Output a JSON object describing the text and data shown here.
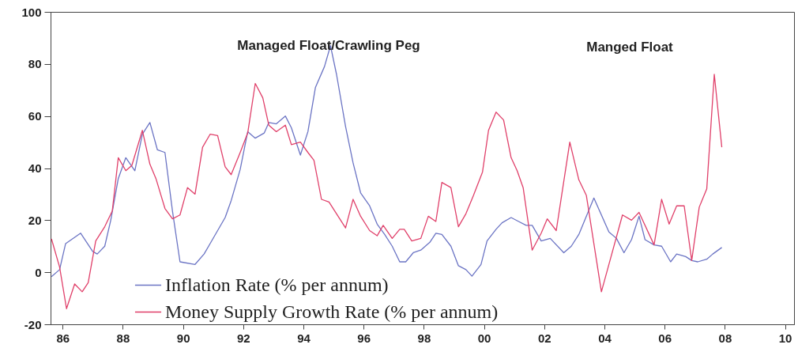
{
  "chart_data": {
    "type": "line",
    "xlim": [
      1985.6,
      2010.3
    ],
    "ylim": [
      -20,
      100
    ],
    "xticks": [
      {
        "value": 1986,
        "label": "86"
      },
      {
        "value": 1988,
        "label": "88"
      },
      {
        "value": 1990,
        "label": "90"
      },
      {
        "value": 1992,
        "label": "92"
      },
      {
        "value": 1994,
        "label": "94"
      },
      {
        "value": 1996,
        "label": "96"
      },
      {
        "value": 1998,
        "label": "98"
      },
      {
        "value": 2000,
        "label": "00"
      },
      {
        "value": 2002,
        "label": "02"
      },
      {
        "value": 2004,
        "label": "04"
      },
      {
        "value": 2006,
        "label": "06"
      },
      {
        "value": 2008,
        "label": "08"
      },
      {
        "value": 2010,
        "label": "10"
      }
    ],
    "yticks": [
      -20,
      0,
      20,
      40,
      60,
      80,
      100
    ],
    "grid": false,
    "legend": "bottom left",
    "marker": "none",
    "line_style": "solid",
    "annotations": [
      "Managed Float/Crawling Peg",
      "Manged Float"
    ],
    "series": [
      {
        "name": "Inflation Rate (% per annum)",
        "color": "#6b74c4",
        "x": [
          1985.63,
          1985.9,
          1986.1,
          1986.6,
          1987.0,
          1987.15,
          1987.4,
          1987.6,
          1987.85,
          1988.1,
          1988.4,
          1988.65,
          1988.9,
          1989.15,
          1989.4,
          1989.65,
          1989.9,
          1990.4,
          1990.7,
          1990.9,
          1991.4,
          1991.6,
          1991.9,
          1992.15,
          1992.4,
          1992.7,
          1992.85,
          1993.1,
          1993.4,
          1993.6,
          1993.9,
          1994.15,
          1994.4,
          1994.7,
          1994.9,
          1995.1,
          1995.4,
          1995.65,
          1995.9,
          1996.2,
          1996.45,
          1996.7,
          1996.95,
          1997.2,
          1997.4,
          1997.65,
          1997.9,
          1998.2,
          1998.4,
          1998.6,
          1998.9,
          1999.15,
          1999.4,
          1999.6,
          1999.9,
          2000.1,
          2000.4,
          2000.6,
          2000.9,
          2001.15,
          2001.4,
          2001.6,
          2001.9,
          2002.2,
          2002.65,
          2002.9,
          2003.15,
          2003.65,
          2004.15,
          2004.4,
          2004.65,
          2004.9,
          2005.15,
          2005.35,
          2005.65,
          2005.9,
          2006.2,
          2006.4,
          2006.7,
          2006.9,
          2007.1,
          2007.4,
          2007.6,
          2007.9
        ],
        "values": [
          -1.7,
          1,
          11,
          15,
          8,
          7,
          10,
          20,
          36,
          44,
          39,
          53,
          57.5,
          47,
          46,
          23.5,
          4,
          3,
          7,
          11,
          21,
          27.5,
          39.5,
          54,
          51.5,
          53.5,
          57.5,
          57,
          60,
          55.5,
          45,
          54,
          71,
          79,
          87,
          76,
          56,
          42,
          30.5,
          25.5,
          18.5,
          14.5,
          10,
          4,
          4,
          7.5,
          8.5,
          11.5,
          15,
          14.5,
          10,
          2.5,
          1,
          -1.5,
          3,
          12,
          16.5,
          19,
          21,
          19.5,
          18,
          18,
          12,
          13,
          7.5,
          10,
          14.5,
          28.5,
          15.5,
          13,
          7.5,
          12.5,
          21.5,
          12.5,
          10.5,
          10,
          4,
          7,
          6,
          4.5,
          4,
          5,
          7,
          9.5
        ]
      },
      {
        "name": "Money Supply Growth Rate (% per annum)",
        "color": "#e0406a",
        "x": [
          1985.63,
          1985.9,
          1986.13,
          1986.4,
          1986.65,
          1986.85,
          1987.1,
          1987.4,
          1987.65,
          1987.85,
          1988.1,
          1988.3,
          1988.65,
          1988.9,
          1989.1,
          1989.4,
          1989.65,
          1989.9,
          1990.15,
          1990.4,
          1990.65,
          1990.9,
          1991.15,
          1991.4,
          1991.6,
          1991.9,
          1992.15,
          1992.4,
          1992.65,
          1992.85,
          1993.1,
          1993.4,
          1993.6,
          1993.9,
          1994.15,
          1994.35,
          1994.6,
          1994.85,
          1995.4,
          1995.65,
          1995.9,
          1996.2,
          1996.45,
          1996.65,
          1996.95,
          1997.2,
          1997.35,
          1997.6,
          1997.9,
          1998.15,
          1998.4,
          1998.6,
          1998.9,
          1999.15,
          1999.4,
          1999.65,
          1999.95,
          2000.15,
          2000.4,
          2000.65,
          2000.9,
          2001.1,
          2001.3,
          2001.6,
          2001.9,
          2002.1,
          2002.4,
          2002.85,
          2003.15,
          2003.4,
          2003.9,
          2004.6,
          2004.9,
          2005.15,
          2005.65,
          2005.9,
          2006.15,
          2006.4,
          2006.65,
          2006.9,
          2007.15,
          2007.4,
          2007.65,
          2007.9
        ],
        "values": [
          12.8,
          2,
          -14,
          -4.5,
          -7.5,
          -4,
          12,
          17.5,
          23.5,
          44,
          39,
          41,
          54.5,
          41.5,
          36,
          24.5,
          20.5,
          22,
          32.5,
          30,
          48,
          53,
          52.5,
          40.5,
          37.5,
          46,
          53.5,
          72.5,
          67,
          56.5,
          54,
          56.5,
          49,
          50,
          46,
          43,
          28,
          27,
          17,
          28,
          21.5,
          16,
          14,
          18,
          13,
          16.5,
          16.5,
          12,
          13,
          21.5,
          19.5,
          34.5,
          32.5,
          17.5,
          22.5,
          29.5,
          38.5,
          54.5,
          61.5,
          58.5,
          44,
          39,
          32.5,
          8.5,
          15,
          20.5,
          16,
          50,
          35.5,
          29.5,
          -7.5,
          22,
          20,
          23,
          10.5,
          28,
          18.5,
          25.5,
          25.5,
          4.5,
          25,
          32,
          76,
          48
        ]
      }
    ]
  }
}
